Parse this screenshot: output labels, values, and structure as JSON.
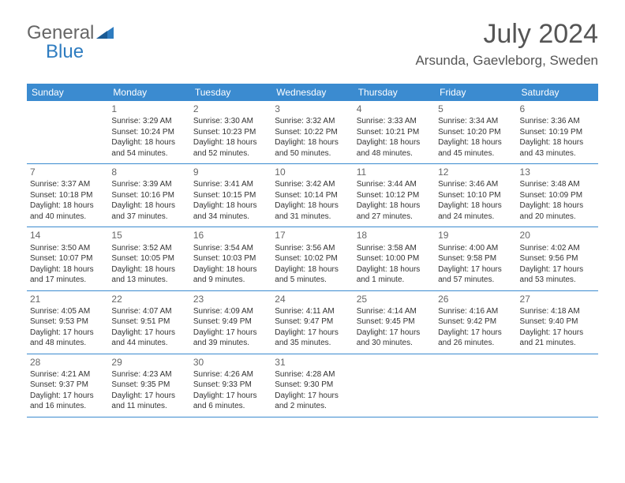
{
  "logo": {
    "part1": "General",
    "part2": "Blue"
  },
  "header": {
    "month": "July 2024",
    "location": "Arsunda, Gaevleborg, Sweden"
  },
  "colors": {
    "brand": "#3b8bd0",
    "text": "#555",
    "cell_text": "#333"
  },
  "day_names": [
    "Sunday",
    "Monday",
    "Tuesday",
    "Wednesday",
    "Thursday",
    "Friday",
    "Saturday"
  ],
  "weeks": [
    [
      {
        "n": "",
        "r": "",
        "s": "",
        "d": ""
      },
      {
        "n": "1",
        "r": "Sunrise: 3:29 AM",
        "s": "Sunset: 10:24 PM",
        "d": "Daylight: 18 hours and 54 minutes."
      },
      {
        "n": "2",
        "r": "Sunrise: 3:30 AM",
        "s": "Sunset: 10:23 PM",
        "d": "Daylight: 18 hours and 52 minutes."
      },
      {
        "n": "3",
        "r": "Sunrise: 3:32 AM",
        "s": "Sunset: 10:22 PM",
        "d": "Daylight: 18 hours and 50 minutes."
      },
      {
        "n": "4",
        "r": "Sunrise: 3:33 AM",
        "s": "Sunset: 10:21 PM",
        "d": "Daylight: 18 hours and 48 minutes."
      },
      {
        "n": "5",
        "r": "Sunrise: 3:34 AM",
        "s": "Sunset: 10:20 PM",
        "d": "Daylight: 18 hours and 45 minutes."
      },
      {
        "n": "6",
        "r": "Sunrise: 3:36 AM",
        "s": "Sunset: 10:19 PM",
        "d": "Daylight: 18 hours and 43 minutes."
      }
    ],
    [
      {
        "n": "7",
        "r": "Sunrise: 3:37 AM",
        "s": "Sunset: 10:18 PM",
        "d": "Daylight: 18 hours and 40 minutes."
      },
      {
        "n": "8",
        "r": "Sunrise: 3:39 AM",
        "s": "Sunset: 10:16 PM",
        "d": "Daylight: 18 hours and 37 minutes."
      },
      {
        "n": "9",
        "r": "Sunrise: 3:41 AM",
        "s": "Sunset: 10:15 PM",
        "d": "Daylight: 18 hours and 34 minutes."
      },
      {
        "n": "10",
        "r": "Sunrise: 3:42 AM",
        "s": "Sunset: 10:14 PM",
        "d": "Daylight: 18 hours and 31 minutes."
      },
      {
        "n": "11",
        "r": "Sunrise: 3:44 AM",
        "s": "Sunset: 10:12 PM",
        "d": "Daylight: 18 hours and 27 minutes."
      },
      {
        "n": "12",
        "r": "Sunrise: 3:46 AM",
        "s": "Sunset: 10:10 PM",
        "d": "Daylight: 18 hours and 24 minutes."
      },
      {
        "n": "13",
        "r": "Sunrise: 3:48 AM",
        "s": "Sunset: 10:09 PM",
        "d": "Daylight: 18 hours and 20 minutes."
      }
    ],
    [
      {
        "n": "14",
        "r": "Sunrise: 3:50 AM",
        "s": "Sunset: 10:07 PM",
        "d": "Daylight: 18 hours and 17 minutes."
      },
      {
        "n": "15",
        "r": "Sunrise: 3:52 AM",
        "s": "Sunset: 10:05 PM",
        "d": "Daylight: 18 hours and 13 minutes."
      },
      {
        "n": "16",
        "r": "Sunrise: 3:54 AM",
        "s": "Sunset: 10:03 PM",
        "d": "Daylight: 18 hours and 9 minutes."
      },
      {
        "n": "17",
        "r": "Sunrise: 3:56 AM",
        "s": "Sunset: 10:02 PM",
        "d": "Daylight: 18 hours and 5 minutes."
      },
      {
        "n": "18",
        "r": "Sunrise: 3:58 AM",
        "s": "Sunset: 10:00 PM",
        "d": "Daylight: 18 hours and 1 minute."
      },
      {
        "n": "19",
        "r": "Sunrise: 4:00 AM",
        "s": "Sunset: 9:58 PM",
        "d": "Daylight: 17 hours and 57 minutes."
      },
      {
        "n": "20",
        "r": "Sunrise: 4:02 AM",
        "s": "Sunset: 9:56 PM",
        "d": "Daylight: 17 hours and 53 minutes."
      }
    ],
    [
      {
        "n": "21",
        "r": "Sunrise: 4:05 AM",
        "s": "Sunset: 9:53 PM",
        "d": "Daylight: 17 hours and 48 minutes."
      },
      {
        "n": "22",
        "r": "Sunrise: 4:07 AM",
        "s": "Sunset: 9:51 PM",
        "d": "Daylight: 17 hours and 44 minutes."
      },
      {
        "n": "23",
        "r": "Sunrise: 4:09 AM",
        "s": "Sunset: 9:49 PM",
        "d": "Daylight: 17 hours and 39 minutes."
      },
      {
        "n": "24",
        "r": "Sunrise: 4:11 AM",
        "s": "Sunset: 9:47 PM",
        "d": "Daylight: 17 hours and 35 minutes."
      },
      {
        "n": "25",
        "r": "Sunrise: 4:14 AM",
        "s": "Sunset: 9:45 PM",
        "d": "Daylight: 17 hours and 30 minutes."
      },
      {
        "n": "26",
        "r": "Sunrise: 4:16 AM",
        "s": "Sunset: 9:42 PM",
        "d": "Daylight: 17 hours and 26 minutes."
      },
      {
        "n": "27",
        "r": "Sunrise: 4:18 AM",
        "s": "Sunset: 9:40 PM",
        "d": "Daylight: 17 hours and 21 minutes."
      }
    ],
    [
      {
        "n": "28",
        "r": "Sunrise: 4:21 AM",
        "s": "Sunset: 9:37 PM",
        "d": "Daylight: 17 hours and 16 minutes."
      },
      {
        "n": "29",
        "r": "Sunrise: 4:23 AM",
        "s": "Sunset: 9:35 PM",
        "d": "Daylight: 17 hours and 11 minutes."
      },
      {
        "n": "30",
        "r": "Sunrise: 4:26 AM",
        "s": "Sunset: 9:33 PM",
        "d": "Daylight: 17 hours and 6 minutes."
      },
      {
        "n": "31",
        "r": "Sunrise: 4:28 AM",
        "s": "Sunset: 9:30 PM",
        "d": "Daylight: 17 hours and 2 minutes."
      },
      {
        "n": "",
        "r": "",
        "s": "",
        "d": ""
      },
      {
        "n": "",
        "r": "",
        "s": "",
        "d": ""
      },
      {
        "n": "",
        "r": "",
        "s": "",
        "d": ""
      }
    ]
  ]
}
